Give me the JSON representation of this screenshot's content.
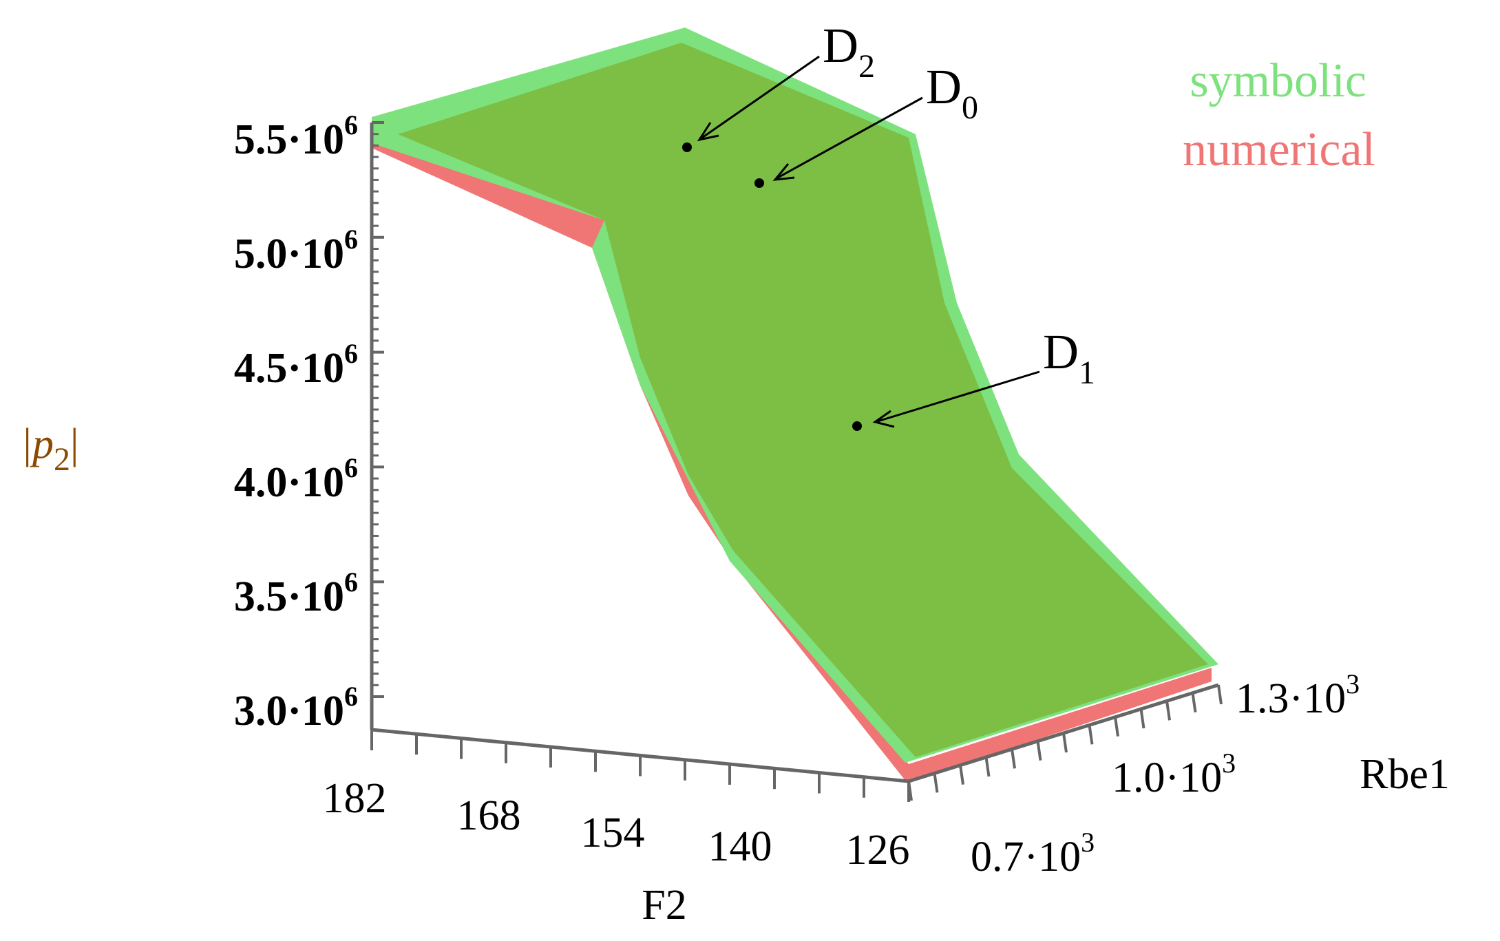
{
  "chart_data": {
    "type": "surface",
    "legend": {
      "placement": "top-right",
      "entries": [
        {
          "label": "symbolic",
          "color": "#7de27d"
        },
        {
          "label": "numerical",
          "color": "#f07575"
        }
      ]
    },
    "zlabel": {
      "main": "|p",
      "sub": "2",
      "tail": "|"
    },
    "xlabel": "F2",
    "ylabel": "Rbe1",
    "zlim": [
      3.0,
      5.5
    ],
    "z_ticks": [
      {
        "value": 3.0,
        "label": "3.0·10",
        "exp": "6"
      },
      {
        "value": 3.5,
        "label": "3.5·10",
        "exp": "6"
      },
      {
        "value": 4.0,
        "label": "4.0·10",
        "exp": "6"
      },
      {
        "value": 4.5,
        "label": "4.5·10",
        "exp": "6"
      },
      {
        "value": 5.0,
        "label": "5.0·10",
        "exp": "6"
      },
      {
        "value": 5.5,
        "label": "5.5·10",
        "exp": "6"
      }
    ],
    "x_ticks": [
      "182",
      "168",
      "154",
      "140",
      "126"
    ],
    "y_ticks": [
      {
        "label": "0.7·10",
        "exp": "3"
      },
      {
        "label": "1.0·10",
        "exp": "3"
      },
      {
        "label": "1.3·10",
        "exp": "3"
      }
    ],
    "annotations": [
      {
        "label": "D",
        "sub": "2"
      },
      {
        "label": "D",
        "sub": "0"
      },
      {
        "label": "D",
        "sub": "1"
      }
    ],
    "colors": {
      "symbolic": "#7de27d",
      "numerical": "#f07575",
      "overlap": "#7dbf45"
    }
  }
}
